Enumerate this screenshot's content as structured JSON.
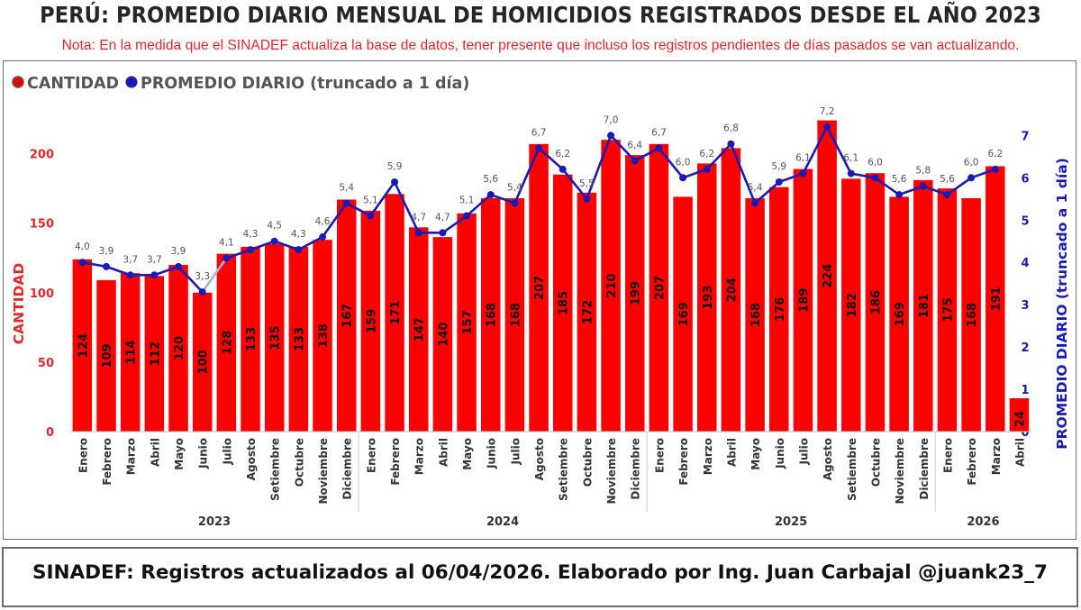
{
  "header": {
    "title": "PERÚ: PROMEDIO DIARIO MENSUAL DE HOMICIDIOS REGISTRADOS DESDE EL AÑO 2023",
    "note": "Nota: En la medida que el SINADEF actualiza la base de datos, tener presente que incluso los registros pendientes de días pasados se van actualizando."
  },
  "footer": {
    "text": "SINADEF: Registros actualizados al 06/04/2026. Elaborado por Ing. Juan Carbajal @juank23_7"
  },
  "colors": {
    "bar": "#ff0000",
    "line": "#1a1ab4",
    "line_segment": "#a6b2dc",
    "left_axis": "#e8262a",
    "right_axis": "#1a1ab4"
  },
  "chart_data": {
    "type": "bar+line",
    "legend": [
      {
        "label": "CANTIDAD",
        "color": "#cc1111"
      },
      {
        "label": "PROMEDIO DIARIO (truncado a 1 día)",
        "color": "#1a1ab4"
      }
    ],
    "legend_position": "top-left",
    "ylabel_left": "CANTIDAD",
    "ylabel_right": "PROMEDIO DIARIO (truncado a 1 día)",
    "ylim_left": [
      0,
      232
    ],
    "ylim_right": [
      0,
      7.45
    ],
    "yticks_left": [
      "0",
      "50",
      "100",
      "150",
      "200"
    ],
    "yticks_right": [
      "0",
      "1",
      "2",
      "3",
      "4",
      "5",
      "6",
      "7"
    ],
    "years": [
      {
        "label": "2023",
        "count": 12
      },
      {
        "label": "2024",
        "count": 12
      },
      {
        "label": "2025",
        "count": 12
      },
      {
        "label": "2026",
        "count": 4
      }
    ],
    "categories": [
      "Enero",
      "Febrero",
      "Marzo",
      "Abril",
      "Mayo",
      "Junio",
      "Julio",
      "Agosto",
      "Setiembre",
      "Octubre",
      "Noviembre",
      "Diciembre",
      "Enero",
      "Febrero",
      "Marzo",
      "Abril",
      "Mayo",
      "Junio",
      "Julio",
      "Agosto",
      "Setiembre",
      "Octubre",
      "Noviembre",
      "Diciembre",
      "Enero",
      "Febrero",
      "Marzo",
      "Abril",
      "Mayo",
      "Junio",
      "Julio",
      "Agosto",
      "Setiembre",
      "Octubre",
      "Noviembre",
      "Diciembre",
      "Enero",
      "Febrero",
      "Marzo",
      "Abril"
    ],
    "series": [
      {
        "name": "CANTIDAD",
        "type": "bar",
        "values": [
          124,
          109,
          114,
          112,
          120,
          100,
          128,
          133,
          135,
          133,
          138,
          167,
          159,
          171,
          147,
          140,
          157,
          168,
          168,
          207,
          185,
          172,
          210,
          199,
          207,
          169,
          193,
          204,
          168,
          176,
          189,
          224,
          182,
          186,
          169,
          181,
          175,
          168,
          191,
          24
        ]
      },
      {
        "name": "PROMEDIO DIARIO (truncado a 1 día)",
        "type": "line",
        "values": [
          4.0,
          3.9,
          3.7,
          3.7,
          3.9,
          3.3,
          4.1,
          4.3,
          4.5,
          4.3,
          4.6,
          5.4,
          5.1,
          5.9,
          4.7,
          4.7,
          5.1,
          5.6,
          5.4,
          6.7,
          6.2,
          5.5,
          7.0,
          6.4,
          6.7,
          6.0,
          6.2,
          6.8,
          5.4,
          5.9,
          6.1,
          7.2,
          6.1,
          6.0,
          5.6,
          5.8,
          5.6,
          6.0,
          6.2,
          null
        ],
        "labels": [
          "4,0",
          "3,9",
          "3,7",
          "3,7",
          "3,9",
          "3,3",
          "4,1",
          "4,3",
          "4,5",
          "4,3",
          "4,6",
          "5,4",
          "5,1",
          "5,9",
          "4,7",
          "4,7",
          "5,1",
          "5,6",
          "5,4",
          "6,7",
          "6,2",
          "5,5",
          "7,0",
          "6,4",
          "6,7",
          "6,0",
          "6,2",
          "6,8",
          "5,4",
          "5,9",
          "6,1",
          "7,2",
          "6,1",
          "6,0",
          "5,6",
          "5,8",
          "5,6",
          "6,0",
          "6,2",
          ""
        ]
      }
    ]
  }
}
